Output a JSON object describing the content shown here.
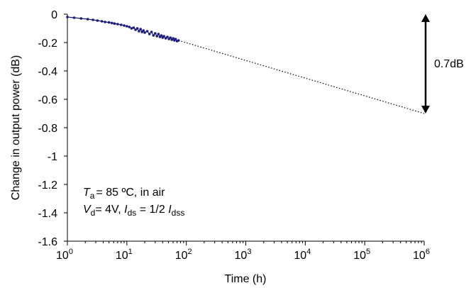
{
  "chart_data": {
    "type": "line",
    "xlabel": "Time (h)",
    "ylabel": "Change in output power (dB)",
    "x_scale": "log",
    "xlim": [
      1,
      1000000
    ],
    "ylim": [
      -1.6,
      0
    ],
    "x_ticks": [
      {
        "value": 1,
        "base": "10",
        "exp": "0"
      },
      {
        "value": 10,
        "base": "10",
        "exp": "1"
      },
      {
        "value": 100,
        "base": "10",
        "exp": "2"
      },
      {
        "value": 1000,
        "base": "10",
        "exp": "3"
      },
      {
        "value": 10000,
        "base": "10",
        "exp": "4"
      },
      {
        "value": 100000,
        "base": "10",
        "exp": "5"
      },
      {
        "value": 1000000,
        "base": "10",
        "exp": "6"
      }
    ],
    "y_ticks": [
      {
        "value": 0,
        "label": "0"
      },
      {
        "value": -0.2,
        "label": "-0.2"
      },
      {
        "value": -0.4,
        "label": "-0.4"
      },
      {
        "value": -0.6,
        "label": "-0.6"
      },
      {
        "value": -0.8,
        "label": "-0.8"
      },
      {
        "value": -1.0,
        "label": "-1"
      },
      {
        "value": -1.2,
        "label": "-1.2"
      },
      {
        "value": -1.4,
        "label": "-1.4"
      },
      {
        "value": -1.6,
        "label": "-1.6"
      }
    ],
    "grid": false,
    "series": [
      {
        "style": "line-with-markers",
        "color": "#1a1a7a",
        "x": [
          1.0,
          1.3,
          1.7,
          2.2,
          2.7,
          3.2,
          3.8,
          4.3,
          5.0,
          5.6,
          6.2,
          7.0,
          8.0,
          9.0,
          10.0,
          11.0,
          12.0,
          13.0,
          14.0,
          15.0,
          16.0,
          17.0,
          18.0,
          19.0,
          20.0,
          22.0,
          24.0,
          26.0,
          28.0,
          30.0,
          32.0,
          34.0,
          36.0,
          38.0,
          40.0,
          42.0,
          45.0,
          48.0,
          51.0,
          54.0,
          57.0,
          60.0,
          63.0,
          66.0,
          70.0,
          74.0
        ],
        "values": [
          -0.02,
          -0.025,
          -0.03,
          -0.035,
          -0.04,
          -0.045,
          -0.05,
          -0.055,
          -0.058,
          -0.062,
          -0.066,
          -0.07,
          -0.075,
          -0.08,
          -0.085,
          -0.09,
          -0.1,
          -0.095,
          -0.11,
          -0.1,
          -0.12,
          -0.105,
          -0.125,
          -0.115,
          -0.13,
          -0.12,
          -0.14,
          -0.125,
          -0.15,
          -0.135,
          -0.155,
          -0.14,
          -0.16,
          -0.15,
          -0.165,
          -0.155,
          -0.17,
          -0.16,
          -0.175,
          -0.165,
          -0.18,
          -0.17,
          -0.185,
          -0.175,
          -0.19,
          -0.185
        ]
      },
      {
        "style": "dotted-extrapolation",
        "color": "#000000",
        "x": [
          74,
          1000000
        ],
        "values": [
          -0.185,
          -0.7
        ]
      }
    ],
    "annotations": {
      "span_label": "0.7dB",
      "span_from": 0,
      "span_to": -0.7,
      "conditions": {
        "line1": {
          "t": "T",
          "t_sub": "a",
          "rest": "= 85 ºC,  in air"
        },
        "line2": {
          "v": "V",
          "v_sub": "d",
          "mid": "=  4V,  ",
          "i1": "I",
          "i1_sub": "ds",
          "eq": " = 1/2 ",
          "i2": "I",
          "i2_sub": "dss"
        }
      }
    }
  }
}
